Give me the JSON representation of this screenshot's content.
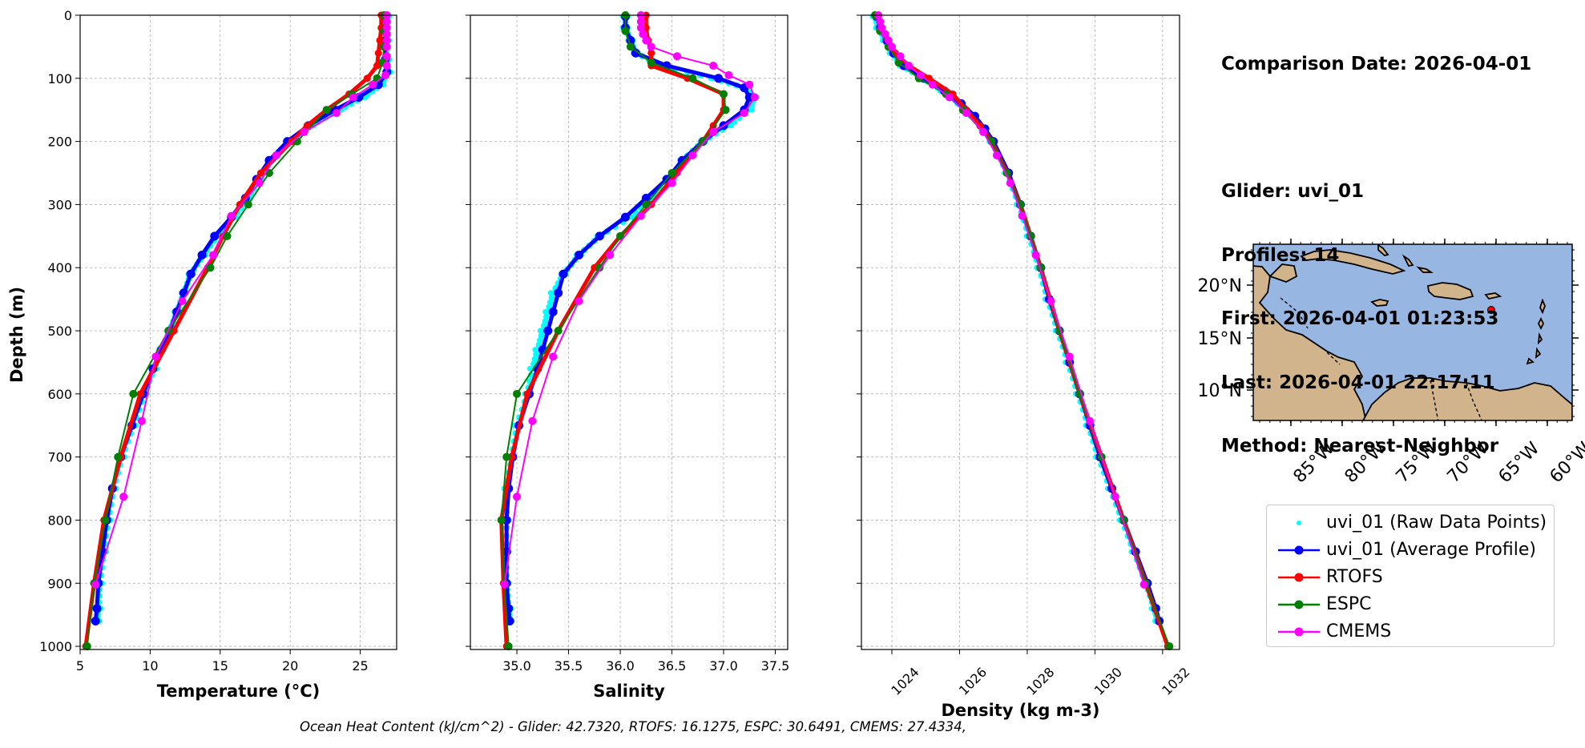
{
  "info": {
    "comparison_date": "Comparison Date: 2026-04-01",
    "glider": "Glider: uvi_01",
    "profiles": "Profiles: 14",
    "first": "First: 2026-04-01 01:23:53",
    "last": "Last: 2026-04-01 22:17:11",
    "method": "Method: Nearest-Neighbor"
  },
  "footer": "Ocean Heat Content (kJ/cm^2) - Glider: 42.7320,  RTOFS: 16.1275,  ESPC: 30.6491,  CMEMS: 27.4334,",
  "legend": [
    {
      "label": "uvi_01 (Raw Data Points)",
      "color": "#00ffff",
      "style": "dot"
    },
    {
      "label": "uvi_01 (Average Profile)",
      "color": "#0000ff",
      "style": "line-marker"
    },
    {
      "label": "RTOFS",
      "color": "#ff0000",
      "style": "line-marker"
    },
    {
      "label": "ESPC",
      "color": "#008000",
      "style": "line-marker"
    },
    {
      "label": "CMEMS",
      "color": "#ff00ff",
      "style": "line-marker"
    }
  ],
  "chart_data": [
    {
      "type": "line",
      "xlabel": "Temperature (°C)",
      "ylabel": "Depth (m)",
      "xlim": [
        5,
        27.6
      ],
      "ylim": [
        1005,
        0
      ],
      "xticks": [
        5,
        10,
        15,
        20,
        25
      ],
      "yticks": [
        0,
        100,
        200,
        300,
        400,
        500,
        600,
        700,
        800,
        900,
        1000
      ],
      "grid": true,
      "series": [
        {
          "name": "uvi_01 (Raw Data Points)",
          "color": "#00ffff",
          "style": "raw",
          "depth": [
            2,
            40,
            70,
            90,
            110,
            130,
            150,
            175,
            200,
            230,
            260,
            290,
            320,
            350,
            380,
            410,
            440,
            470,
            500,
            530,
            560,
            600,
            650,
            700,
            750,
            800,
            850,
            900,
            940,
            960
          ],
          "values": [
            26.9,
            26.9,
            26.9,
            27,
            26.5,
            25.2,
            23.5,
            21.5,
            20,
            18.6,
            17.8,
            17,
            16,
            14.8,
            13.8,
            12.9,
            12.4,
            11.9,
            11.4,
            10.8,
            10.3,
            9.6,
            8.8,
            8,
            7.4,
            7,
            6.7,
            6.4,
            6.3,
            6.2
          ]
        },
        {
          "name": "uvi_01 (Average Profile)",
          "color": "#0000ff",
          "style": "avg",
          "depth": [
            2,
            40,
            70,
            90,
            110,
            130,
            150,
            175,
            200,
            230,
            260,
            290,
            320,
            350,
            380,
            410,
            440,
            470,
            500,
            530,
            560,
            600,
            650,
            700,
            750,
            800,
            850,
            900,
            940,
            960
          ],
          "values": [
            26.8,
            26.8,
            26.8,
            26.9,
            26.3,
            24.9,
            23.2,
            21.3,
            19.8,
            18.5,
            17.6,
            16.8,
            15.8,
            14.6,
            13.7,
            12.9,
            12.4,
            11.9,
            11.4,
            10.8,
            10.2,
            9.5,
            8.7,
            7.9,
            7.3,
            6.9,
            6.6,
            6.3,
            6.2,
            6.1
          ]
        },
        {
          "name": "RTOFS",
          "color": "#ff0000",
          "style": "thick",
          "depth": [
            0,
            20,
            40,
            60,
            80,
            100,
            125,
            150,
            175,
            200,
            250,
            300,
            350,
            400,
            500,
            600,
            700,
            800,
            900,
            1000
          ],
          "values": [
            26.5,
            26.5,
            26.4,
            26.3,
            26.2,
            25.5,
            24.2,
            22.6,
            21.2,
            20.1,
            17.9,
            16.4,
            15.2,
            14.1,
            11.7,
            9.3,
            7.9,
            6.7,
            6.0,
            5.4
          ]
        },
        {
          "name": "ESPC",
          "color": "#008000",
          "style": "marker",
          "depth": [
            0,
            25,
            50,
            75,
            100,
            125,
            150,
            200,
            250,
            300,
            350,
            400,
            500,
            600,
            700,
            800,
            900,
            1000
          ],
          "values": [
            26.7,
            26.7,
            26.7,
            26.6,
            26.2,
            24.4,
            22.6,
            20.5,
            18.5,
            17,
            15.5,
            14.3,
            11.3,
            8.8,
            7.7,
            6.8,
            6.0,
            5.5
          ]
        },
        {
          "name": "CMEMS",
          "color": "#ff00ff",
          "style": "marker",
          "depth": [
            0,
            10,
            20,
            30,
            40,
            50,
            65,
            80,
            95,
            110,
            130,
            155,
            185,
            222,
            266,
            318,
            380,
            453,
            541,
            643,
            763,
            902
          ],
          "values": [
            26.9,
            26.9,
            26.9,
            26.9,
            26.9,
            26.9,
            26.9,
            26.9,
            26.8,
            25.9,
            24.5,
            23.3,
            21,
            19,
            17.8,
            15.8,
            14.5,
            12.3,
            10.4,
            9.4,
            8.1,
            6.1
          ]
        }
      ]
    },
    {
      "type": "line",
      "xlabel": "Salinity",
      "ylim": [
        1005,
        0
      ],
      "xlim": [
        34.55,
        37.62
      ],
      "xticks": [
        35.0,
        35.5,
        36.0,
        36.5,
        37.0,
        37.5
      ],
      "tick_labels": [
        "35.0",
        "35.5",
        "36.0",
        "36.5",
        "37.0",
        "37.5"
      ],
      "grid": true,
      "series": [
        {
          "name": "uvi_01 (Raw Data Points)",
          "color": "#00ffff",
          "style": "raw",
          "depth": [
            2,
            20,
            40,
            60,
            80,
            100,
            115,
            130,
            150,
            175,
            200,
            230,
            260,
            290,
            320,
            350,
            380,
            410,
            440,
            470,
            500,
            530,
            560,
            600,
            650,
            700,
            750,
            800,
            850,
            900,
            940,
            960
          ],
          "values": [
            36.05,
            36.05,
            36.1,
            36.15,
            36.4,
            36.9,
            37.2,
            37.3,
            37.25,
            37.05,
            36.8,
            36.6,
            36.5,
            36.3,
            36.1,
            35.8,
            35.6,
            35.45,
            35.35,
            35.3,
            35.25,
            35.2,
            35.15,
            35.1,
            35.0,
            34.95,
            34.9,
            34.9,
            34.9,
            34.9,
            34.92,
            34.93
          ]
        },
        {
          "name": "uvi_01 (Average Profile)",
          "color": "#0000ff",
          "style": "avg",
          "depth": [
            2,
            20,
            40,
            60,
            80,
            100,
            115,
            130,
            150,
            175,
            200,
            230,
            260,
            290,
            320,
            350,
            380,
            410,
            440,
            470,
            500,
            530,
            560,
            600,
            650,
            700,
            750,
            800,
            850,
            900,
            940,
            960
          ],
          "values": [
            36.05,
            36.05,
            36.1,
            36.15,
            36.45,
            36.95,
            37.2,
            37.25,
            37.2,
            37.0,
            36.8,
            36.6,
            36.45,
            36.25,
            36.05,
            35.8,
            35.6,
            35.45,
            35.4,
            35.35,
            35.3,
            35.25,
            35.2,
            35.12,
            35.02,
            34.96,
            34.92,
            34.9,
            34.9,
            34.9,
            34.92,
            34.93
          ]
        },
        {
          "name": "RTOFS",
          "color": "#ff0000",
          "style": "thick",
          "depth": [
            0,
            20,
            40,
            60,
            80,
            100,
            125,
            150,
            175,
            200,
            250,
            300,
            350,
            400,
            500,
            600,
            700,
            800,
            900,
            1000
          ],
          "values": [
            36.25,
            36.25,
            36.27,
            36.3,
            36.3,
            36.65,
            37.0,
            37.0,
            36.9,
            36.8,
            36.55,
            36.3,
            36.0,
            35.75,
            35.4,
            35.1,
            34.95,
            34.85,
            34.87,
            34.9
          ]
        },
        {
          "name": "ESPC",
          "color": "#008000",
          "style": "marker",
          "depth": [
            0,
            25,
            50,
            75,
            100,
            125,
            150,
            200,
            250,
            300,
            350,
            400,
            500,
            600,
            700,
            800,
            900,
            1000
          ],
          "values": [
            36.05,
            36.05,
            36.1,
            36.3,
            36.7,
            37.0,
            37.02,
            36.8,
            36.5,
            36.25,
            36.0,
            35.8,
            35.4,
            35.0,
            34.9,
            34.85,
            34.88,
            34.92
          ]
        },
        {
          "name": "CMEMS",
          "color": "#ff00ff",
          "style": "marker",
          "depth": [
            0,
            10,
            20,
            30,
            40,
            50,
            65,
            80,
            95,
            110,
            130,
            155,
            185,
            222,
            266,
            318,
            380,
            453,
            541,
            643,
            763,
            902
          ],
          "values": [
            36.2,
            36.2,
            36.2,
            36.22,
            36.25,
            36.3,
            36.55,
            36.9,
            37.05,
            37.25,
            37.3,
            37.2,
            36.9,
            36.7,
            36.5,
            36.2,
            35.9,
            35.6,
            35.35,
            35.15,
            35.0,
            34.88
          ]
        }
      ]
    },
    {
      "type": "line",
      "xlabel": "Density (kg m-3)",
      "ylim": [
        1005,
        0
      ],
      "xlim": [
        1023.1,
        1032.5
      ],
      "xticks": [
        1024,
        1026,
        1028,
        1030,
        1032
      ],
      "grid": true,
      "series": [
        {
          "name": "uvi_01 (Raw Data Points)",
          "color": "#00ffff",
          "style": "raw",
          "depth": [
            2,
            20,
            40,
            60,
            80,
            100,
            120,
            140,
            160,
            180,
            200,
            250,
            300,
            350,
            400,
            450,
            500,
            550,
            600,
            650,
            700,
            750,
            800,
            850,
            900,
            940,
            960
          ],
          "values": [
            1023.5,
            1023.6,
            1023.8,
            1024.0,
            1024.3,
            1024.9,
            1025.5,
            1026.0,
            1026.4,
            1026.7,
            1026.95,
            1027.4,
            1027.75,
            1028.05,
            1028.35,
            1028.6,
            1028.9,
            1029.2,
            1029.5,
            1029.8,
            1030.1,
            1030.45,
            1030.8,
            1031.15,
            1031.5,
            1031.75,
            1031.85
          ]
        },
        {
          "name": "uvi_01 (Average Profile)",
          "color": "#0000ff",
          "style": "avg",
          "depth": [
            2,
            20,
            40,
            60,
            80,
            100,
            120,
            140,
            160,
            180,
            200,
            250,
            300,
            350,
            400,
            450,
            500,
            550,
            600,
            650,
            700,
            750,
            800,
            850,
            900,
            940,
            960
          ],
          "values": [
            1023.55,
            1023.65,
            1023.85,
            1024.05,
            1024.35,
            1024.95,
            1025.55,
            1026.05,
            1026.45,
            1026.75,
            1027.0,
            1027.45,
            1027.8,
            1028.1,
            1028.4,
            1028.65,
            1028.95,
            1029.25,
            1029.55,
            1029.85,
            1030.15,
            1030.5,
            1030.85,
            1031.2,
            1031.55,
            1031.8,
            1031.9
          ]
        },
        {
          "name": "RTOFS",
          "color": "#ff0000",
          "style": "thick",
          "depth": [
            0,
            20,
            40,
            60,
            80,
            100,
            125,
            150,
            175,
            200,
            250,
            300,
            350,
            400,
            500,
            600,
            700,
            800,
            900,
            1000
          ],
          "values": [
            1023.6,
            1023.7,
            1023.9,
            1024.1,
            1024.5,
            1025.1,
            1025.8,
            1026.2,
            1026.6,
            1026.95,
            1027.4,
            1027.8,
            1028.1,
            1028.4,
            1028.95,
            1029.55,
            1030.2,
            1030.85,
            1031.5,
            1032.15
          ]
        },
        {
          "name": "ESPC",
          "color": "#008000",
          "style": "marker",
          "depth": [
            0,
            25,
            50,
            75,
            100,
            125,
            150,
            200,
            250,
            300,
            350,
            400,
            500,
            600,
            700,
            800,
            900,
            1000
          ],
          "values": [
            1023.5,
            1023.65,
            1023.9,
            1024.2,
            1024.8,
            1025.6,
            1026.1,
            1026.95,
            1027.4,
            1027.8,
            1028.1,
            1028.4,
            1028.95,
            1029.55,
            1030.2,
            1030.85,
            1031.5,
            1032.2
          ]
        },
        {
          "name": "CMEMS",
          "color": "#ff00ff",
          "style": "marker",
          "depth": [
            0,
            10,
            20,
            30,
            40,
            50,
            65,
            80,
            95,
            110,
            130,
            155,
            185,
            222,
            266,
            318,
            380,
            453,
            541,
            643,
            763,
            902
          ],
          "values": [
            1023.6,
            1023.65,
            1023.7,
            1023.8,
            1023.9,
            1024.0,
            1024.25,
            1024.5,
            1024.85,
            1025.2,
            1025.7,
            1026.2,
            1026.7,
            1027.1,
            1027.5,
            1027.85,
            1028.25,
            1028.7,
            1029.25,
            1029.85,
            1030.6,
            1031.45
          ]
        }
      ]
    }
  ],
  "map": {
    "lat_ticks": [
      "20°N",
      "15°N",
      "10°N"
    ],
    "lon_ticks": [
      "85°W",
      "80°W",
      "75°W",
      "70°W",
      "65°W",
      "60°W"
    ],
    "ocean_color": "#97b6e1",
    "land_color": "#d2b48c",
    "glider_marker_color": "#ff0000"
  }
}
